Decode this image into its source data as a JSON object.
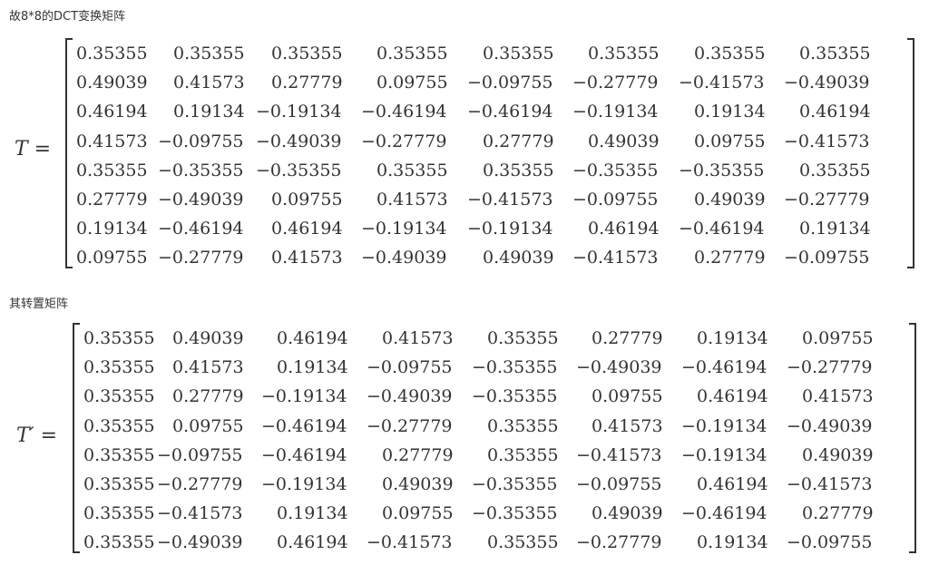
{
  "caption_transform": "故8*8的DCT变换矩阵",
  "caption_transpose": "其转置矩阵",
  "eq1": {
    "lhs_var": "T",
    "lhs_eq": " =",
    "rows": [
      [
        "0.35355",
        "0.35355",
        "0.35355",
        "0.35355",
        "0.35355",
        "0.35355",
        "0.35355",
        "0.35355"
      ],
      [
        "0.49039",
        "0.41573",
        "0.27779",
        "0.09755",
        "−0.09755",
        "−0.27779",
        "−0.41573",
        "−0.49039"
      ],
      [
        "0.46194",
        "0.19134",
        "−0.19134",
        "−0.46194",
        "−0.46194",
        "−0.19134",
        "0.19134",
        "0.46194"
      ],
      [
        "0.41573",
        "−0.09755",
        "−0.49039",
        "−0.27779",
        "0.27779",
        "0.49039",
        "0.09755",
        "−0.41573"
      ],
      [
        "0.35355",
        "−0.35355",
        "−0.35355",
        "0.35355",
        "0.35355",
        "−0.35355",
        "−0.35355",
        "0.35355"
      ],
      [
        "0.27779",
        "−0.49039",
        "0.09755",
        "0.41573",
        "−0.41573",
        "−0.09755",
        "0.49039",
        "−0.27779"
      ],
      [
        "0.19134",
        "−0.46194",
        "0.46194",
        "−0.19134",
        "−0.19134",
        "0.46194",
        "−0.46194",
        "0.19134"
      ],
      [
        "0.09755",
        "−0.27779",
        "0.41573",
        "−0.49039",
        "0.49039",
        "−0.41573",
        "0.27779",
        "−0.09755"
      ]
    ]
  },
  "eq2": {
    "lhs_var": "T′",
    "lhs_eq": " =",
    "rows": [
      [
        "0.35355",
        "0.49039",
        "0.46194",
        "0.41573",
        "0.35355",
        "0.27779",
        "0.19134",
        "0.09755"
      ],
      [
        "0.35355",
        "0.41573",
        "0.19134",
        "−0.09755",
        "−0.35355",
        "−0.49039",
        "−0.46194",
        "−0.27779"
      ],
      [
        "0.35355",
        "0.27779",
        "−0.19134",
        "−0.49039",
        "−0.35355",
        "0.09755",
        "0.46194",
        "0.41573"
      ],
      [
        "0.35355",
        "0.09755",
        "−0.46194",
        "−0.27779",
        "0.35355",
        "0.41573",
        "−0.19134",
        "−0.49039"
      ],
      [
        "0.35355",
        "−0.09755",
        "−0.46194",
        "0.27779",
        "0.35355",
        "−0.41573",
        "−0.19134",
        "0.49039"
      ],
      [
        "0.35355",
        "−0.27779",
        "−0.19134",
        "0.49039",
        "−0.35355",
        "−0.09755",
        "0.46194",
        "−0.41573"
      ],
      [
        "0.35355",
        "−0.41573",
        "0.19134",
        "0.09755",
        "−0.35355",
        "0.49039",
        "−0.46194",
        "0.27779"
      ],
      [
        "0.35355",
        "−0.49039",
        "0.46194",
        "−0.41573",
        "0.35355",
        "−0.27779",
        "0.19134",
        "−0.09755"
      ]
    ]
  }
}
